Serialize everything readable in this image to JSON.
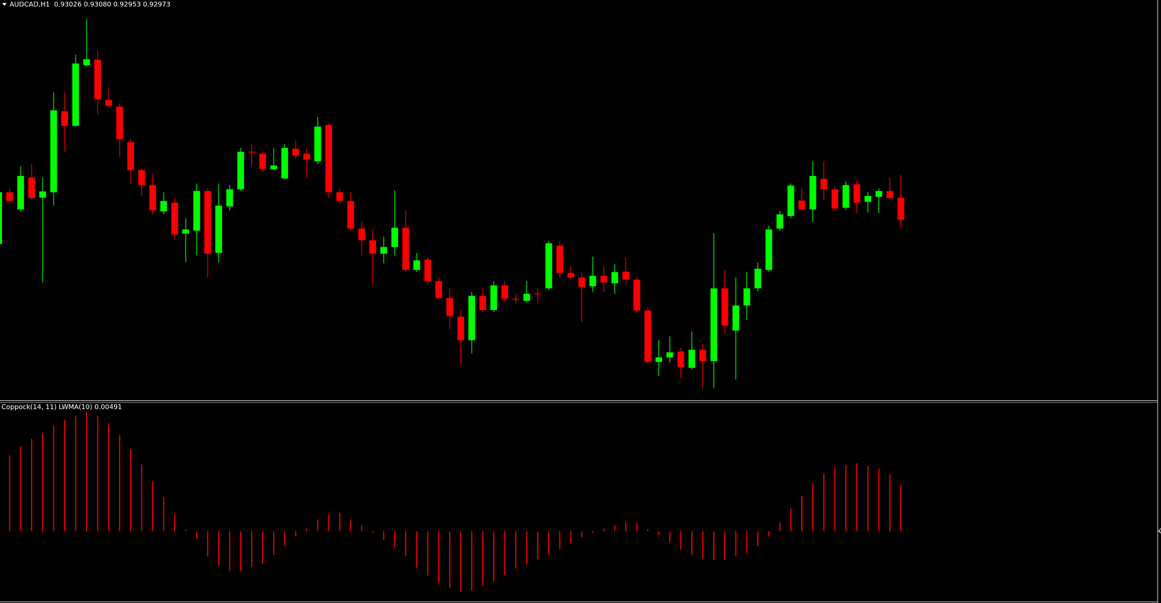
{
  "chart_data": {
    "type": "candlestick",
    "title": "AUDCAD,H1  0.93026 0.93080 0.92953 0.92973",
    "open": [
      0.92915,
      0.93039,
      0.92998,
      0.93074,
      0.93026,
      0.93039,
      0.93233,
      0.93198,
      0.93343,
      0.93356,
      0.9326,
      0.93244,
      0.93159,
      0.93092,
      0.93056,
      0.92993,
      0.93014,
      0.9294,
      0.92947,
      0.93042,
      0.92894,
      0.93005,
      0.93046,
      0.93136,
      0.93131,
      0.93094,
      0.93072,
      0.93143,
      0.93131,
      0.93113,
      0.932,
      0.93039,
      0.93018,
      0.92952,
      0.92924,
      0.92892,
      0.92908,
      0.92954,
      0.92853,
      0.92878,
      0.92826,
      0.92786,
      0.92741,
      0.92685,
      0.92791,
      0.92757,
      0.92816,
      0.92784,
      0.92779,
      0.92796,
      0.92809,
      0.92911,
      0.92846,
      0.92835,
      0.92814,
      0.92839,
      0.92821,
      0.92849,
      0.9283,
      0.92756,
      0.92633,
      0.92644,
      0.92658,
      0.92619,
      0.92662,
      0.92635,
      0.92809,
      0.92708,
      0.92768,
      0.92809,
      0.92853,
      0.92952,
      0.92982,
      0.93019,
      0.92998,
      0.93071,
      0.93046,
      0.93002,
      0.93058,
      0.93016,
      0.93028,
      0.93042,
      0.93026
    ],
    "high": [
      0.93048,
      0.93048,
      0.93101,
      0.93106,
      0.93074,
      0.93278,
      0.93278,
      0.93368,
      0.93453,
      0.93379,
      0.93287,
      0.93251,
      0.93166,
      0.93095,
      0.93083,
      0.93039,
      0.93025,
      0.92977,
      0.9306,
      0.93048,
      0.9306,
      0.93056,
      0.93145,
      0.93154,
      0.93136,
      0.93145,
      0.93154,
      0.93163,
      0.93145,
      0.93219,
      0.93205,
      0.93048,
      0.93039,
      0.92968,
      0.9295,
      0.92933,
      0.93044,
      0.92995,
      0.92894,
      0.92883,
      0.92835,
      0.92809,
      0.92759,
      0.928,
      0.92809,
      0.92826,
      0.92826,
      0.92795,
      0.92826,
      0.92809,
      0.92922,
      0.92922,
      0.92862,
      0.92848,
      0.92885,
      0.92862,
      0.92867,
      0.92883,
      0.92835,
      0.92763,
      0.92685,
      0.92694,
      0.92667,
      0.92706,
      0.92676,
      0.92941,
      0.92853,
      0.92835,
      0.92848,
      0.92871,
      0.92959,
      0.92995,
      0.9306,
      0.93048,
      0.93113,
      0.93113,
      0.93053,
      0.93065,
      0.93069,
      0.93039,
      0.93048,
      0.93074,
      0.9308
    ],
    "low": [
      0.92911,
      0.93012,
      0.92993,
      0.93021,
      0.92823,
      0.93007,
      0.93136,
      0.93195,
      0.9334,
      0.93225,
      0.93242,
      0.93124,
      0.9306,
      0.9303,
      0.92986,
      0.92986,
      0.92924,
      0.92871,
      0.92888,
      0.92835,
      0.92871,
      0.92995,
      0.93042,
      0.93101,
      0.93088,
      0.93092,
      0.93069,
      0.93118,
      0.93074,
      0.93106,
      0.93025,
      0.93012,
      0.92947,
      0.92888,
      0.92818,
      0.92869,
      0.92888,
      0.92848,
      0.92848,
      0.92819,
      0.92782,
      0.92711,
      0.92626,
      0.92653,
      0.92752,
      0.92752,
      0.92777,
      0.92773,
      0.92775,
      0.92773,
      0.92805,
      0.92835,
      0.9283,
      0.92729,
      0.928,
      0.928,
      0.92796,
      0.92818,
      0.92752,
      0.92628,
      0.926,
      0.92632,
      0.92596,
      0.92614,
      0.9257,
      0.9257,
      0.92702,
      0.92591,
      0.92734,
      0.92802,
      0.92849,
      0.92947,
      0.92977,
      0.92995,
      0.92968,
      0.93021,
      0.92993,
      0.92996,
      0.92989,
      0.92991,
      0.92989,
      0.93021,
      0.92953
    ],
    "close": [
      0.93039,
      0.93018,
      0.93078,
      0.93025,
      0.93041,
      0.93235,
      0.93198,
      0.93347,
      0.93357,
      0.93262,
      0.93246,
      0.93166,
      0.93092,
      0.93056,
      0.92996,
      0.93018,
      0.92938,
      0.9295,
      0.93042,
      0.92892,
      0.93007,
      0.93046,
      0.93136,
      0.93134,
      0.93095,
      0.93103,
      0.93145,
      0.93127,
      0.93117,
      0.93196,
      0.93039,
      0.93018,
      0.92952,
      0.92924,
      0.92892,
      0.92908,
      0.92954,
      0.92853,
      0.92876,
      0.92826,
      0.92786,
      0.92743,
      0.92685,
      0.92791,
      0.92757,
      0.92816,
      0.92784,
      0.92782,
      0.92796,
      0.92795,
      0.92917,
      0.92846,
      0.92835,
      0.92812,
      0.92839,
      0.92823,
      0.92848,
      0.9283,
      0.92756,
      0.92633,
      0.92644,
      0.92656,
      0.92621,
      0.92662,
      0.92635,
      0.92809,
      0.9272,
      0.92768,
      0.92809,
      0.92856,
      0.9295,
      0.92986,
      0.93055,
      0.92998,
      0.93078,
      0.93046,
      0.93,
      0.93056,
      0.93014,
      0.9303,
      0.93042,
      0.93025,
      0.92973
    ],
    "ylim": [
      0.92543,
      0.93499
    ],
    "up_color": "#00ff00",
    "down_color": "#ff0000",
    "indicator": {
      "type": "histogram",
      "title": "Coppock(14, 11) LWMA(10) 0.00491",
      "values": [
        null,
        0.00802,
        0.00896,
        0.00974,
        0.01036,
        0.01114,
        0.01176,
        0.01215,
        0.01262,
        0.01215,
        0.01137,
        0.01013,
        0.00865,
        0.00701,
        0.00522,
        0.00358,
        0.00179,
        0.00016,
        -0.00078,
        -0.00265,
        -0.00366,
        -0.00421,
        -0.00421,
        -0.00374,
        -0.00343,
        -0.00249,
        -0.00156,
        -0.00055,
        0.00031,
        0.00125,
        0.00179,
        0.00195,
        0.00125,
        0.00062,
        -0.00016,
        -0.00093,
        -0.00171,
        -0.00265,
        -0.0039,
        -0.00467,
        -0.00545,
        -0.006,
        -0.00639,
        -0.00623,
        -0.00576,
        -0.00522,
        -0.0046,
        -0.00397,
        -0.00351,
        -0.00296,
        -0.00249,
        -0.00187,
        -0.00125,
        -0.00062,
        -0.00016,
        0.00031,
        0.00062,
        0.00093,
        0.00086,
        0.00023,
        -0.00039,
        -0.00117,
        -0.00195,
        -0.00249,
        -0.00288,
        -0.00304,
        -0.00304,
        -0.00265,
        -0.00234,
        -0.00156,
        -0.00055,
        0.00093,
        0.00241,
        0.00374,
        0.00506,
        0.00608,
        0.0067,
        0.00701,
        0.00717,
        0.00686,
        0.00662,
        0.006,
        0.00491
      ],
      "color": "#ff0000",
      "ylim": [
        -0.0074,
        0.01348
      ],
      "yticks": [
        0
      ]
    }
  }
}
